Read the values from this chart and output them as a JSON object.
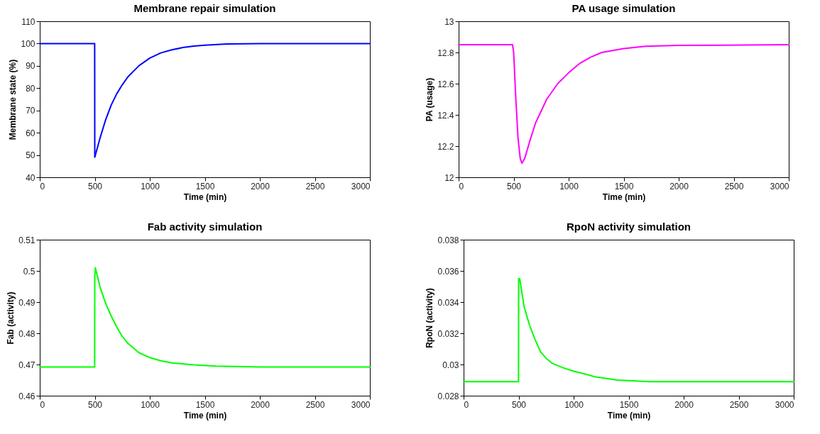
{
  "chart_data": [
    {
      "type": "line",
      "title": "Membrane repair simulation",
      "xlabel": "Time (min)",
      "ylabel": "Membrane state (%)",
      "xlim": [
        0,
        3000
      ],
      "xticks": [
        0,
        500,
        1000,
        1500,
        2000,
        2500,
        3000
      ],
      "ylim": [
        40,
        110
      ],
      "yticks": [
        40,
        50,
        60,
        70,
        80,
        90,
        100,
        110
      ],
      "grid": false,
      "series": [
        {
          "color": "#0000ff",
          "x": [
            0,
            499,
            500,
            550,
            600,
            650,
            700,
            750,
            800,
            900,
            1000,
            1100,
            1200,
            1300,
            1400,
            1500,
            1700,
            2000,
            3000
          ],
          "values": [
            100,
            100,
            49,
            58,
            66,
            72.5,
            77.5,
            81.5,
            85,
            90,
            93.5,
            95.8,
            97.2,
            98.2,
            98.9,
            99.3,
            99.8,
            100,
            100
          ]
        }
      ]
    },
    {
      "type": "line",
      "title": "PA usage simulation",
      "xlabel": "Time (min)",
      "ylabel": "PA (usage)",
      "xlim": [
        0,
        3000
      ],
      "xticks": [
        0,
        500,
        1000,
        1500,
        2000,
        2500,
        3000
      ],
      "ylim": [
        12,
        13
      ],
      "yticks": [
        12,
        12.2,
        12.4,
        12.6,
        12.8,
        13
      ],
      "grid": false,
      "series": [
        {
          "color": "#ff00ff",
          "x": [
            0,
            490,
            500,
            520,
            540,
            560,
            575,
            600,
            650,
            700,
            800,
            900,
            1000,
            1100,
            1200,
            1300,
            1500,
            1700,
            2000,
            3000
          ],
          "values": [
            12.85,
            12.85,
            12.8,
            12.5,
            12.25,
            12.12,
            12.09,
            12.12,
            12.24,
            12.35,
            12.5,
            12.6,
            12.67,
            12.73,
            12.77,
            12.8,
            12.825,
            12.84,
            12.845,
            12.85
          ]
        }
      ]
    },
    {
      "type": "line",
      "title": "Fab activity simulation",
      "xlabel": "Time (min)",
      "ylabel": "Fab (activity)",
      "xlim": [
        0,
        3000
      ],
      "xticks": [
        0,
        500,
        1000,
        1500,
        2000,
        2500,
        3000
      ],
      "ylim": [
        0.46,
        0.51
      ],
      "yticks": [
        0.46,
        0.47,
        0.48,
        0.49,
        0.5,
        0.51
      ],
      "grid": false,
      "series": [
        {
          "color": "#00ff00",
          "x": [
            0,
            499,
            500,
            505,
            550,
            600,
            650,
            700,
            750,
            800,
            900,
            1000,
            1100,
            1200,
            1400,
            1600,
            2000,
            3000
          ],
          "values": [
            0.4692,
            0.4692,
            0.4985,
            0.501,
            0.4945,
            0.4895,
            0.4855,
            0.482,
            0.479,
            0.4768,
            0.4738,
            0.4722,
            0.4712,
            0.4705,
            0.4699,
            0.4695,
            0.4692,
            0.4692
          ]
        }
      ]
    },
    {
      "type": "line",
      "title": "RpoN activity simulation",
      "xlabel": "Time (min)",
      "ylabel": "RpoN (activity)",
      "xlim": [
        0,
        3000
      ],
      "xticks": [
        0,
        500,
        1000,
        1500,
        2000,
        2500,
        3000
      ],
      "ylim": [
        0.028,
        0.038
      ],
      "yticks": [
        0.028,
        0.03,
        0.032,
        0.034,
        0.036,
        0.038
      ],
      "grid": false,
      "series": [
        {
          "color": "#00ff00",
          "x": [
            0,
            499,
            500,
            510,
            550,
            600,
            650,
            700,
            750,
            800,
            900,
            1000,
            1100,
            1200,
            1400,
            1700,
            3000
          ],
          "values": [
            0.0289,
            0.0289,
            0.0355,
            0.0355,
            0.0337,
            0.0325,
            0.0316,
            0.0308,
            0.0304,
            0.0301,
            0.0298,
            0.02957,
            0.0294,
            0.0292,
            0.029,
            0.0289,
            0.0289
          ]
        }
      ]
    }
  ]
}
